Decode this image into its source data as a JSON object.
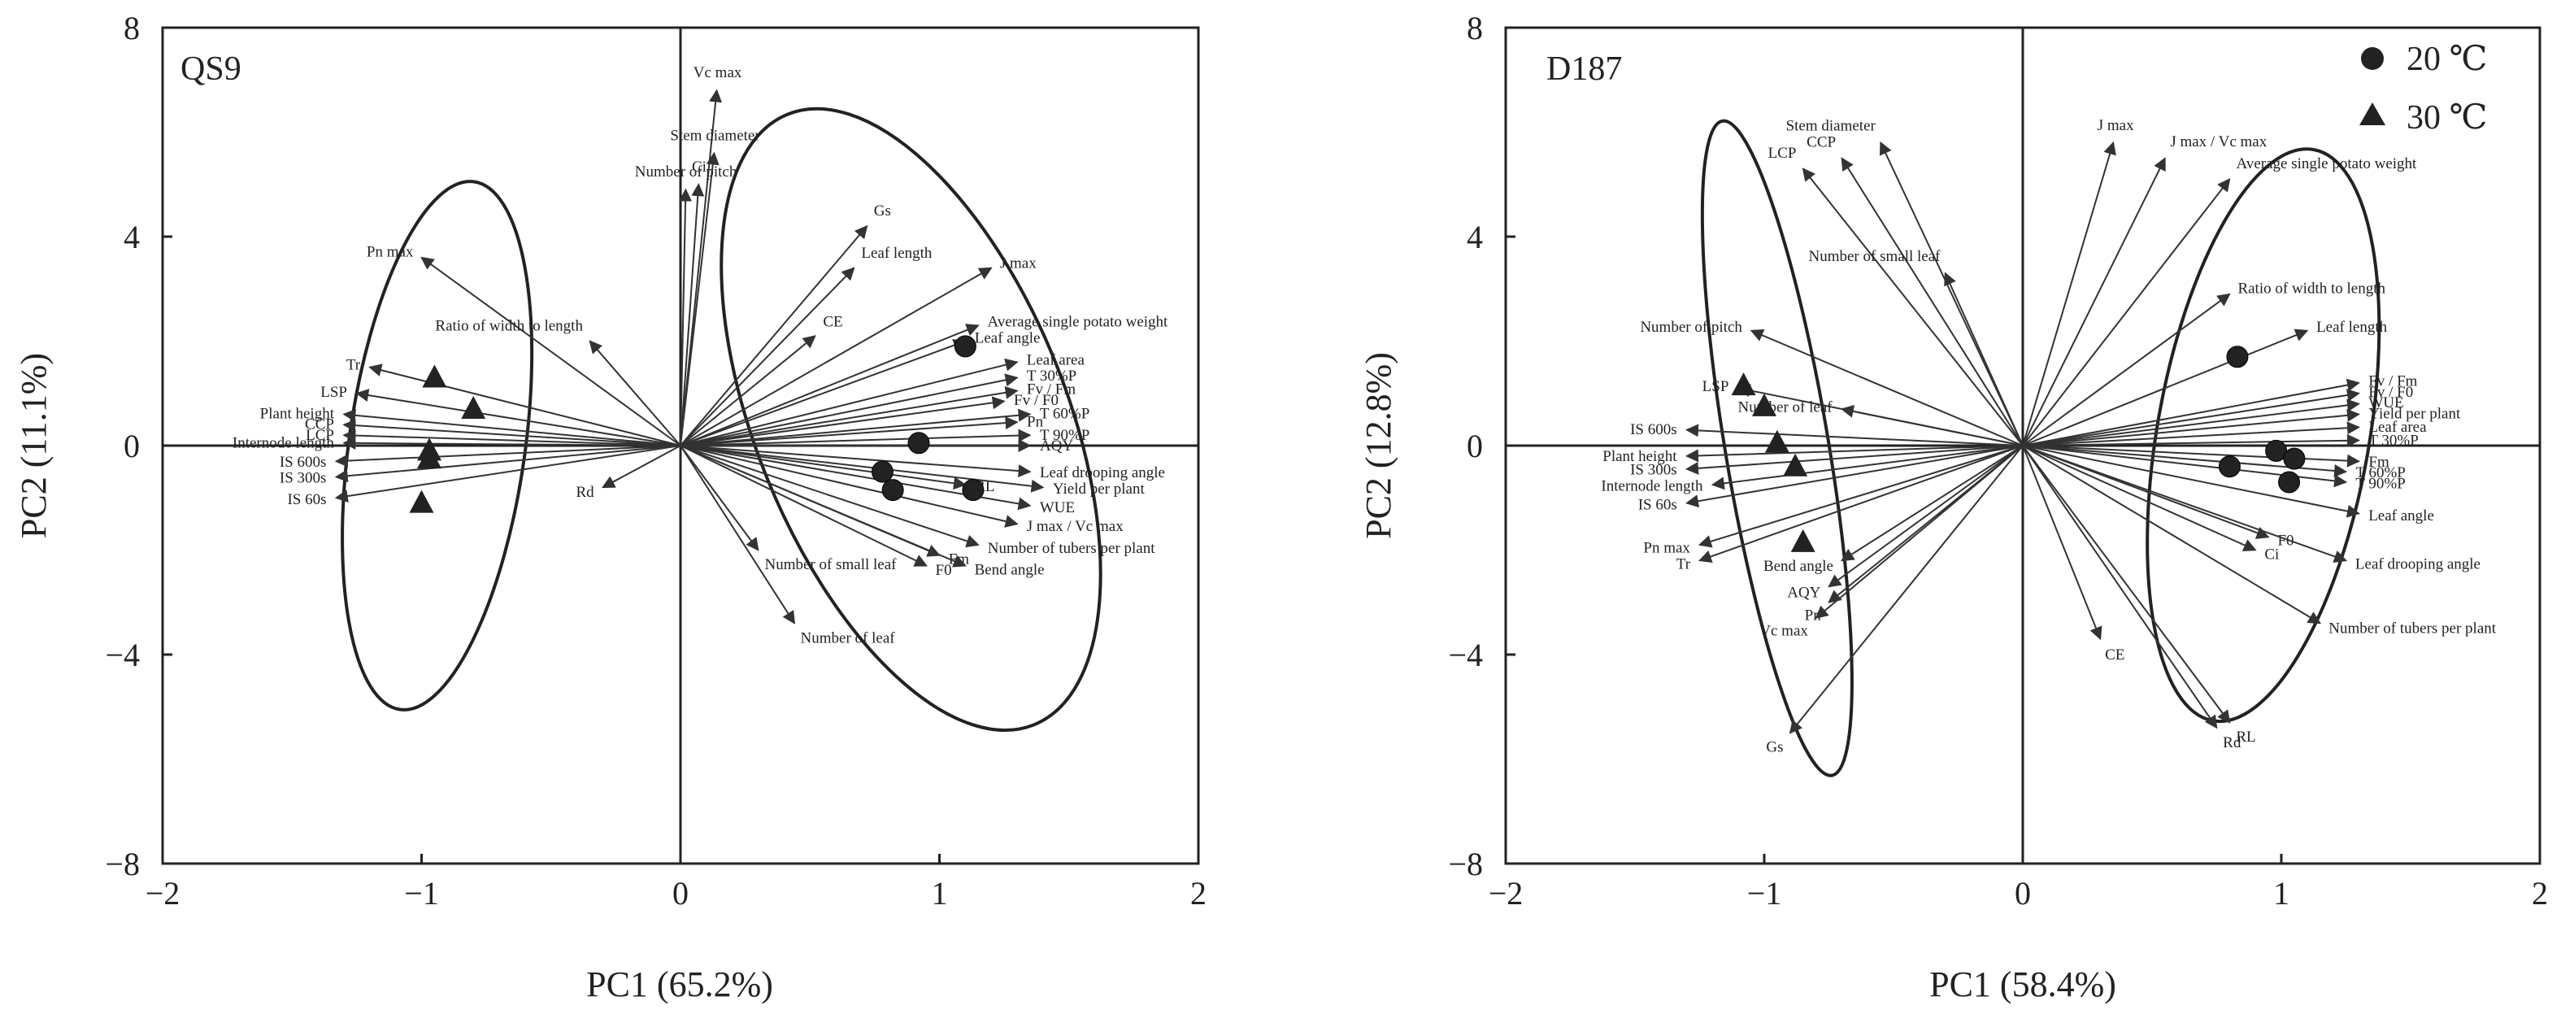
{
  "chart_data": [
    {
      "type": "scatter",
      "panel_label": "QS9",
      "xlabel": "PC1 (65.2%)",
      "ylabel": "PC2 (11.1%)",
      "xlim": [
        -2,
        2
      ],
      "ylim": [
        -8,
        8
      ],
      "x_ticks": [
        "−2",
        "−1",
        "0",
        "1",
        "2"
      ],
      "y_ticks": [
        "8",
        "4",
        "0",
        "−4",
        "−8"
      ],
      "reference_lines": [
        0,
        0
      ],
      "vectors": [
        {
          "label": "Vc max",
          "x": 0.14,
          "y": 6.8
        },
        {
          "label": "Stem diameter",
          "x": 0.13,
          "y": 5.6
        },
        {
          "label": "Ci",
          "x": 0.07,
          "y": 5.0
        },
        {
          "label": "Number of pitch",
          "x": 0.02,
          "y": 4.9
        },
        {
          "label": "Gs",
          "x": 0.72,
          "y": 4.2
        },
        {
          "label": "Leaf length",
          "x": 0.67,
          "y": 3.4
        },
        {
          "label": "J max",
          "x": 1.2,
          "y": 3.4
        },
        {
          "label": "Average single potato weight",
          "x": 1.15,
          "y": 2.3
        },
        {
          "label": "Leaf angle",
          "x": 1.1,
          "y": 2.0
        },
        {
          "label": "CE",
          "x": 0.52,
          "y": 2.1
        },
        {
          "label": "Leaf area",
          "x": 1.3,
          "y": 1.6
        },
        {
          "label": "T 30%P",
          "x": 1.3,
          "y": 1.3
        },
        {
          "label": "Fv / Fm",
          "x": 1.3,
          "y": 1.05
        },
        {
          "label": "Fv / F0",
          "x": 1.25,
          "y": 0.85
        },
        {
          "label": "T 60%P",
          "x": 1.35,
          "y": 0.6
        },
        {
          "label": "Pn",
          "x": 1.3,
          "y": 0.45
        },
        {
          "label": "T 90%P",
          "x": 1.35,
          "y": 0.2
        },
        {
          "label": "AQY",
          "x": 1.35,
          "y": 0.0
        },
        {
          "label": "Leaf drooping angle",
          "x": 1.35,
          "y": -0.5
        },
        {
          "label": "RL",
          "x": 1.1,
          "y": -0.75
        },
        {
          "label": "Yield per plant",
          "x": 1.4,
          "y": -0.8
        },
        {
          "label": "WUE",
          "x": 1.35,
          "y": -1.15
        },
        {
          "label": "J max / Vc max",
          "x": 1.3,
          "y": -1.5
        },
        {
          "label": "Number of tubers per plant",
          "x": 1.15,
          "y": -1.9
        },
        {
          "label": "Fm",
          "x": 1.0,
          "y": -2.1
        },
        {
          "label": "Bend angle",
          "x": 1.1,
          "y": -2.3
        },
        {
          "label": "F0",
          "x": 0.95,
          "y": -2.3
        },
        {
          "label": "Number of small leaf",
          "x": 0.3,
          "y": -2.0
        },
        {
          "label": "Number of leaf",
          "x": 0.44,
          "y": -3.4
        },
        {
          "label": "Pn max",
          "x": -1.0,
          "y": 3.6
        },
        {
          "label": "Ratio of width to length",
          "x": -0.35,
          "y": 2.0
        },
        {
          "label": "Tr",
          "x": -1.2,
          "y": 1.5
        },
        {
          "label": "LSP",
          "x": -1.25,
          "y": 1.0
        },
        {
          "label": "Plant height",
          "x": -1.3,
          "y": 0.6
        },
        {
          "label": "CCP",
          "x": -1.3,
          "y": 0.4
        },
        {
          "label": "LCP",
          "x": -1.3,
          "y": 0.2
        },
        {
          "label": "Internode length",
          "x": -1.3,
          "y": 0.05
        },
        {
          "label": "IS 600s",
          "x": -1.33,
          "y": -0.3
        },
        {
          "label": "IS 300s",
          "x": -1.33,
          "y": -0.6
        },
        {
          "label": "IS 60s",
          "x": -1.33,
          "y": -1.0
        },
        {
          "label": "Rd",
          "x": -0.3,
          "y": -0.8
        }
      ],
      "series": [
        {
          "name": "20 ℃",
          "marker": "circle",
          "points": [
            [
              1.1,
              1.9
            ],
            [
              0.92,
              0.05
            ],
            [
              0.78,
              -0.5
            ],
            [
              0.82,
              -0.85
            ],
            [
              1.13,
              -0.85
            ]
          ]
        },
        {
          "name": "30 ℃",
          "marker": "triangle",
          "points": [
            [
              -0.95,
              1.3
            ],
            [
              -0.8,
              0.7
            ],
            [
              -0.97,
              -0.1
            ],
            [
              -0.97,
              -0.25
            ],
            [
              -1.0,
              -1.1
            ]
          ]
        }
      ],
      "ellipses": [
        {
          "cx": -0.94,
          "cy": 0.0,
          "rx": 0.34,
          "ry": 5.1,
          "angle_deg": 8
        },
        {
          "cx": 0.89,
          "cy": 0.5,
          "rx": 0.6,
          "ry": 6.3,
          "angle_deg": -22
        }
      ]
    },
    {
      "type": "scatter",
      "panel_label": "D187",
      "xlabel": "PC1 (58.4%)",
      "ylabel": "PC2 (12.8%)",
      "xlim": [
        -2,
        2
      ],
      "ylim": [
        -8,
        8
      ],
      "x_ticks": [
        "−2",
        "−1",
        "0",
        "1",
        "2"
      ],
      "y_ticks": [
        "8",
        "4",
        "0",
        "−4",
        "−8"
      ],
      "reference_lines": [
        0,
        0
      ],
      "vectors": [
        {
          "label": "J max",
          "x": 0.35,
          "y": 5.8
        },
        {
          "label": "J max / Vc max",
          "x": 0.55,
          "y": 5.5
        },
        {
          "label": "Average single potato weight",
          "x": 0.8,
          "y": 5.1
        },
        {
          "label": "Stem diameter",
          "x": -0.55,
          "y": 5.8
        },
        {
          "label": "CCP",
          "x": -0.7,
          "y": 5.5
        },
        {
          "label": "LCP",
          "x": -0.85,
          "y": 5.3
        },
        {
          "label": "Number of small leaf",
          "x": -0.3,
          "y": 3.3
        },
        {
          "label": "Ratio of width to length",
          "x": 0.8,
          "y": 2.9
        },
        {
          "label": "Leaf length",
          "x": 1.1,
          "y": 2.2
        },
        {
          "label": "Fv / Fm",
          "x": 1.3,
          "y": 1.2
        },
        {
          "label": "Fv / F0",
          "x": 1.3,
          "y": 1.0
        },
        {
          "label": "WUE",
          "x": 1.3,
          "y": 0.8
        },
        {
          "label": "Yield per plant",
          "x": 1.3,
          "y": 0.6
        },
        {
          "label": "Leaf area",
          "x": 1.3,
          "y": 0.35
        },
        {
          "label": "T 30%P",
          "x": 1.3,
          "y": 0.1
        },
        {
          "label": "Fm",
          "x": 1.3,
          "y": -0.3
        },
        {
          "label": "T 60%P",
          "x": 1.25,
          "y": -0.5
        },
        {
          "label": "T 90%P",
          "x": 1.25,
          "y": -0.7
        },
        {
          "label": "Leaf angle",
          "x": 1.3,
          "y": -1.3
        },
        {
          "label": "F0",
          "x": 0.95,
          "y": -1.75
        },
        {
          "label": "Ci",
          "x": 0.9,
          "y": -2.0
        },
        {
          "label": "Leaf drooping angle",
          "x": 1.25,
          "y": -2.2
        },
        {
          "label": "Number of tubers per plant",
          "x": 1.15,
          "y": -3.4
        },
        {
          "label": "CE",
          "x": 0.3,
          "y": -3.7
        },
        {
          "label": "Rd",
          "x": 0.75,
          "y": -5.4
        },
        {
          "label": "RL",
          "x": 0.8,
          "y": -5.3
        },
        {
          "label": "Number of pitch",
          "x": -1.05,
          "y": 2.2
        },
        {
          "label": "LSP",
          "x": -1.1,
          "y": 1.1
        },
        {
          "label": "Number of leaf",
          "x": -0.7,
          "y": 0.7
        },
        {
          "label": "IS 600s",
          "x": -1.3,
          "y": 0.3
        },
        {
          "label": "Plant height",
          "x": -1.3,
          "y": -0.2
        },
        {
          "label": "IS 300s",
          "x": -1.3,
          "y": -0.45
        },
        {
          "label": "Internode length",
          "x": -1.2,
          "y": -0.75
        },
        {
          "label": "IS 60s",
          "x": -1.3,
          "y": -1.1
        },
        {
          "label": "Pn max",
          "x": -1.25,
          "y": -1.9
        },
        {
          "label": "Tr",
          "x": -1.25,
          "y": -2.2
        },
        {
          "label": "Bend angle",
          "x": -0.7,
          "y": -2.2
        },
        {
          "label": "AQY",
          "x": -0.75,
          "y": -2.7
        },
        {
          "label": "Pn",
          "x": -0.75,
          "y": -3.0
        },
        {
          "label": "Vc max",
          "x": -0.8,
          "y": -3.3
        },
        {
          "label": "Gs",
          "x": -0.9,
          "y": -5.5
        }
      ],
      "series": [
        {
          "name": "20 ℃",
          "marker": "circle",
          "points": [
            [
              0.83,
              1.7
            ],
            [
              0.98,
              -0.1
            ],
            [
              1.05,
              -0.25
            ],
            [
              1.03,
              -0.7
            ],
            [
              0.8,
              -0.4
            ]
          ]
        },
        {
          "name": "30 ℃",
          "marker": "triangle",
          "points": [
            [
              -1.08,
              1.15
            ],
            [
              -1.0,
              0.75
            ],
            [
              -0.95,
              0.05
            ],
            [
              -0.88,
              -0.4
            ],
            [
              -0.85,
              -1.85
            ]
          ]
        }
      ],
      "legend": [
        "20 ℃",
        "30 ℃"
      ],
      "legend_position": "top-right",
      "ellipses": [
        {
          "cx": -0.95,
          "cy": -0.05,
          "rx": 0.2,
          "ry": 6.35,
          "angle_deg": -9.5
        },
        {
          "cx": 0.93,
          "cy": 0.2,
          "rx": 0.41,
          "ry": 5.55,
          "angle_deg": 10
        }
      ]
    }
  ]
}
